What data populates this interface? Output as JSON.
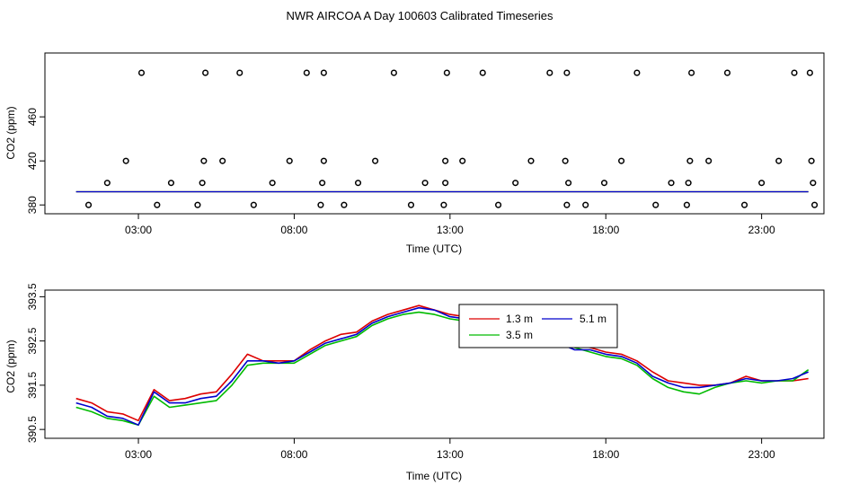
{
  "figure": {
    "title": "NWR AIRCOA A  Day 100603  Calibrated Timeseries"
  },
  "chart_data": [
    {
      "type": "scatter",
      "xlabel": "Time (UTC)",
      "ylabel": "CO2 (ppm)",
      "xlim": [
        0.0,
        25.0
      ],
      "ylim": [
        372,
        518
      ],
      "x_ticks": [
        3,
        8,
        13,
        18,
        23
      ],
      "x_tick_labels": [
        "03:00",
        "08:00",
        "13:00",
        "18:00",
        "23:00"
      ],
      "y_ticks": [
        380,
        420,
        460
      ],
      "y_tick_labels": [
        "380",
        "420",
        "460"
      ],
      "points": [
        [
          1.4,
          380
        ],
        [
          2.0,
          400
        ],
        [
          2.6,
          420
        ],
        [
          3.1,
          500
        ],
        [
          3.6,
          380
        ],
        [
          4.05,
          400
        ],
        [
          4.9,
          380
        ],
        [
          5.05,
          400
        ],
        [
          5.1,
          420
        ],
        [
          5.15,
          500
        ],
        [
          5.7,
          420
        ],
        [
          6.25,
          500
        ],
        [
          6.7,
          380
        ],
        [
          7.3,
          400
        ],
        [
          7.85,
          420
        ],
        [
          8.4,
          500
        ],
        [
          8.85,
          380
        ],
        [
          8.9,
          400
        ],
        [
          8.95,
          420
        ],
        [
          8.95,
          500
        ],
        [
          9.6,
          380
        ],
        [
          10.05,
          400
        ],
        [
          10.6,
          420
        ],
        [
          11.2,
          500
        ],
        [
          11.75,
          380
        ],
        [
          12.2,
          400
        ],
        [
          12.8,
          380
        ],
        [
          12.85,
          400
        ],
        [
          12.85,
          420
        ],
        [
          12.9,
          500
        ],
        [
          13.4,
          420
        ],
        [
          14.05,
          500
        ],
        [
          14.55,
          380
        ],
        [
          15.1,
          400
        ],
        [
          15.6,
          420
        ],
        [
          16.2,
          500
        ],
        [
          16.7,
          420
        ],
        [
          16.75,
          500
        ],
        [
          16.75,
          380
        ],
        [
          16.8,
          400
        ],
        [
          17.35,
          380
        ],
        [
          17.95,
          400
        ],
        [
          18.5,
          420
        ],
        [
          19.0,
          500
        ],
        [
          19.6,
          380
        ],
        [
          20.1,
          400
        ],
        [
          20.6,
          380
        ],
        [
          20.65,
          400
        ],
        [
          20.7,
          420
        ],
        [
          20.75,
          500
        ],
        [
          21.3,
          420
        ],
        [
          21.9,
          500
        ],
        [
          22.45,
          380
        ],
        [
          23.0,
          400
        ],
        [
          23.55,
          420
        ],
        [
          24.05,
          500
        ],
        [
          24.55,
          500
        ],
        [
          24.6,
          420
        ],
        [
          24.65,
          400
        ],
        [
          24.7,
          380
        ]
      ],
      "series": [
        {
          "color": "#dd0000",
          "level": 392
        },
        {
          "color": "#00bb00",
          "level": 392
        },
        {
          "color": "#0000cc",
          "level": 392
        }
      ]
    },
    {
      "type": "line",
      "xlabel": "Time (UTC)",
      "ylabel": "CO2 (ppm)",
      "xlim": [
        0.0,
        25.0
      ],
      "ylim": [
        390.3,
        393.65
      ],
      "x_ticks": [
        3,
        8,
        13,
        18,
        23
      ],
      "x_tick_labels": [
        "03:00",
        "08:00",
        "13:00",
        "18:00",
        "23:00"
      ],
      "y_ticks": [
        390.5,
        391.5,
        392.5,
        393.5
      ],
      "y_tick_labels": [
        "390.5",
        "391.5",
        "392.5",
        "393.5"
      ],
      "legend": {
        "position": "top-right"
      },
      "x": [
        1.0,
        1.5,
        2.0,
        2.5,
        3.0,
        3.5,
        4.0,
        4.5,
        5.0,
        5.5,
        6.0,
        6.5,
        7.0,
        7.5,
        8.0,
        8.5,
        9.0,
        9.5,
        10.0,
        10.5,
        11.0,
        11.5,
        12.0,
        12.5,
        13.0,
        13.5,
        14.0,
        14.5,
        15.0,
        15.5,
        16.0,
        16.5,
        17.0,
        17.5,
        18.0,
        18.5,
        19.0,
        19.5,
        20.0,
        20.5,
        21.0,
        21.5,
        22.0,
        22.5,
        23.0,
        23.5,
        24.0,
        24.5
      ],
      "series": [
        {
          "name": "1.3 m",
          "color": "#dd0000",
          "values": [
            391.2,
            391.1,
            390.9,
            390.85,
            390.7,
            391.4,
            391.15,
            391.2,
            391.3,
            391.35,
            391.75,
            392.2,
            392.05,
            392.05,
            392.05,
            392.3,
            392.5,
            392.65,
            392.7,
            392.95,
            393.1,
            393.2,
            393.3,
            393.2,
            393.1,
            393.05,
            393.0,
            392.95,
            392.85,
            392.7,
            392.6,
            392.5,
            392.4,
            392.35,
            392.25,
            392.2,
            392.05,
            391.8,
            391.6,
            391.55,
            391.5,
            391.5,
            391.55,
            391.7,
            391.6,
            391.6,
            391.6,
            391.65
          ]
        },
        {
          "name": "3.5 m",
          "color": "#00bb00",
          "values": [
            391.0,
            390.9,
            390.75,
            390.7,
            390.6,
            391.25,
            391.0,
            391.05,
            391.1,
            391.15,
            391.5,
            391.95,
            392.0,
            392.0,
            392.0,
            392.2,
            392.4,
            392.5,
            392.6,
            392.85,
            393.0,
            393.1,
            393.15,
            393.1,
            393.0,
            392.95,
            392.85,
            392.8,
            392.65,
            392.55,
            392.5,
            392.45,
            392.35,
            392.25,
            392.15,
            392.1,
            391.95,
            391.65,
            391.45,
            391.35,
            391.3,
            391.45,
            391.55,
            391.6,
            391.55,
            391.6,
            391.6,
            391.85
          ]
        },
        {
          "name": "5.1 m",
          "color": "#0000cc",
          "values": [
            391.1,
            391.0,
            390.8,
            390.75,
            390.6,
            391.35,
            391.1,
            391.1,
            391.2,
            391.25,
            391.6,
            392.05,
            392.05,
            392.0,
            392.05,
            392.25,
            392.45,
            392.55,
            392.65,
            392.9,
            393.05,
            393.15,
            393.25,
            393.2,
            393.05,
            393.0,
            392.95,
            392.85,
            392.75,
            392.6,
            392.55,
            392.45,
            392.3,
            392.3,
            392.2,
            392.15,
            392.0,
            391.7,
            391.55,
            391.45,
            391.45,
            391.5,
            391.55,
            391.65,
            391.6,
            391.6,
            391.65,
            391.8
          ]
        }
      ]
    }
  ]
}
